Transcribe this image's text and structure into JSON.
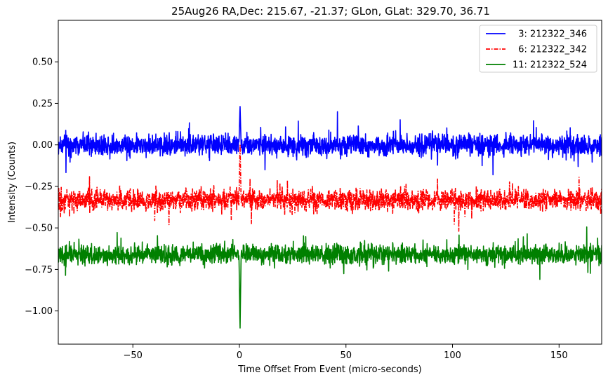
{
  "chart_data": {
    "type": "line",
    "title": "25Aug26 RA,Dec:  215.67, -21.37; GLon, GLat:  329.70,  36.71",
    "xlabel": "Time Offset From Event (micro-seconds)",
    "ylabel": "Intensity (Counts)",
    "xlim": [
      -85,
      170
    ],
    "ylim": [
      -1.2,
      0.75
    ],
    "xticks": [
      -50,
      0,
      50,
      100,
      150
    ],
    "xtick_labels": [
      "−50",
      "0",
      "50",
      "100",
      "150"
    ],
    "yticks": [
      0.5,
      0.25,
      0.0,
      -0.25,
      -0.5,
      -0.75,
      -1.0
    ],
    "ytick_labels": [
      "0.50",
      "0.25",
      "0.00",
      "−0.25",
      "−0.50",
      "−0.75",
      "−1.00"
    ],
    "legend_position": "top-right",
    "series": [
      {
        "name": "  3: 212322_346",
        "color": "#0000ff",
        "linestyle": "solid",
        "baseline": 0.0,
        "noise": 0.045,
        "event_peak": 0.24,
        "spikes": [
          {
            "x": 46,
            "y": 0.2
          },
          {
            "x": 119,
            "y": -0.18
          },
          {
            "x": 12,
            "y": -0.15
          }
        ]
      },
      {
        "name": "  6: 212322_342",
        "color": "#ff0000",
        "linestyle": "dashdot",
        "baseline": -0.33,
        "noise": 0.045,
        "event_peak": 0.01,
        "spikes": [
          {
            "x": 103,
            "y": -0.52
          },
          {
            "x": -33,
            "y": -0.48
          }
        ]
      },
      {
        "name": "11: 212322_524",
        "color": "#008000",
        "linestyle": "solid",
        "baseline": -0.66,
        "noise": 0.04,
        "event_peak": -1.12,
        "spikes": [
          {
            "x": 141,
            "y": -0.81
          },
          {
            "x": 70,
            "y": -0.76
          }
        ]
      }
    ]
  }
}
